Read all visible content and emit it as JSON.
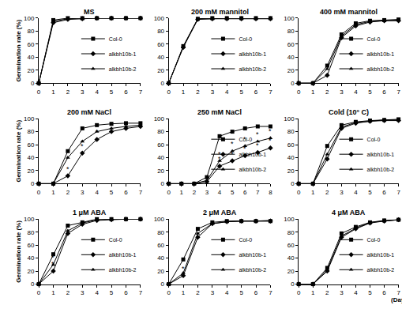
{
  "chart_data": [
    {
      "type": "line",
      "title": "MS",
      "x": [
        0,
        1,
        2,
        3,
        4,
        5,
        6,
        7
      ],
      "xlim": [
        0,
        7
      ],
      "xticks": [
        0,
        1,
        2,
        3,
        4,
        5,
        6,
        7
      ],
      "ylim": [
        0,
        100
      ],
      "yticks": [
        0,
        20,
        40,
        60,
        80,
        100
      ],
      "grid": false,
      "y_label": "Germination rate (%)",
      "legend": "lower right",
      "series": [
        {
          "name": "Col-0",
          "color": "#000000",
          "marker": "square",
          "values": [
            0,
            97,
            100,
            100,
            100,
            100,
            100,
            100
          ]
        },
        {
          "name": "alkbh10b-1",
          "color": "#000000",
          "marker": "diamond",
          "values": [
            0,
            93,
            98,
            99,
            100,
            100,
            100,
            100
          ]
        },
        {
          "name": "alkbh10b-2",
          "color": "#000000",
          "marker": "triangle-up",
          "values": [
            0,
            95,
            99,
            100,
            100,
            100,
            100,
            100
          ]
        }
      ]
    },
    {
      "type": "line",
      "title": "200 mM mannitol",
      "x": [
        0,
        1,
        2,
        3,
        4,
        5,
        6,
        7
      ],
      "xlim": [
        0,
        7
      ],
      "xticks": [
        0,
        1,
        2,
        3,
        4,
        5,
        6,
        7
      ],
      "ylim": [
        0,
        100
      ],
      "yticks": [
        0,
        20,
        40,
        60,
        80,
        100
      ],
      "grid": false,
      "legend": "lower right",
      "series": [
        {
          "name": "Col-0",
          "color": "#000000",
          "marker": "square",
          "values": [
            0,
            57,
            99,
            100,
            100,
            100,
            100,
            100
          ]
        },
        {
          "name": "alkbh10b-1",
          "color": "#000000",
          "marker": "diamond",
          "values": [
            0,
            55,
            98,
            99,
            99,
            99,
            99,
            99
          ]
        },
        {
          "name": "alkbh10b-2",
          "color": "#000000",
          "marker": "triangle-up",
          "values": [
            0,
            56,
            99,
            99,
            100,
            100,
            100,
            100
          ]
        }
      ]
    },
    {
      "type": "line",
      "title": "400 mM mannitol",
      "x": [
        0,
        1,
        2,
        3,
        4,
        5,
        6,
        7
      ],
      "xlim": [
        0,
        7
      ],
      "xticks": [
        0,
        1,
        2,
        3,
        4,
        5,
        6,
        7
      ],
      "ylim": [
        0,
        100
      ],
      "yticks": [
        0,
        20,
        40,
        60,
        80,
        100
      ],
      "grid": false,
      "legend": "lower right",
      "series": [
        {
          "name": "Col-0",
          "color": "#000000",
          "marker": "square",
          "values": [
            0,
            0,
            27,
            75,
            92,
            96,
            97,
            98
          ]
        },
        {
          "name": "alkbh10b-1",
          "color": "#000000",
          "marker": "diamond",
          "values": [
            0,
            0,
            12,
            70,
            88,
            94,
            96,
            96
          ]
        },
        {
          "name": "alkbh10b-2",
          "color": "#000000",
          "marker": "triangle-up",
          "values": [
            0,
            0,
            22,
            72,
            90,
            95,
            96,
            97
          ]
        }
      ]
    },
    {
      "type": "line",
      "title": "200 mM NaCl",
      "x": [
        0,
        1,
        2,
        3,
        4,
        5,
        6,
        7
      ],
      "xlim": [
        0,
        7
      ],
      "xticks": [
        0,
        1,
        2,
        3,
        4,
        5,
        6,
        7
      ],
      "ylim": [
        0,
        100
      ],
      "yticks": [
        0,
        20,
        40,
        60,
        80,
        100
      ],
      "grid": false,
      "y_label": "Germination rate (%)",
      "series": [
        {
          "name": "Col-0",
          "color": "#000000",
          "marker": "square",
          "values": [
            0,
            0,
            50,
            85,
            90,
            92,
            93,
            93
          ]
        },
        {
          "name": "alkbh10b-1",
          "color": "#000000",
          "marker": "diamond",
          "values": [
            0,
            0,
            12,
            47,
            68,
            80,
            85,
            88
          ]
        },
        {
          "name": "alkbh10b-2",
          "color": "#000000",
          "marker": "triangle-up",
          "values": [
            0,
            0,
            40,
            65,
            80,
            85,
            88,
            90
          ]
        }
      ],
      "annotations": [
        {
          "x": 2,
          "y": 12,
          "text": "*"
        },
        {
          "x": 3,
          "y": 47,
          "text": "*"
        },
        {
          "x": 4,
          "y": 68,
          "text": "*"
        }
      ]
    },
    {
      "type": "line",
      "title": "250 mM NaCl",
      "x": [
        0,
        1,
        2,
        3,
        4,
        5,
        6,
        7,
        8
      ],
      "xlim": [
        0,
        8
      ],
      "xticks": [
        0,
        1,
        2,
        3,
        4,
        5,
        6,
        7,
        8
      ],
      "ylim": [
        0,
        100
      ],
      "yticks": [
        0,
        20,
        40,
        60,
        80,
        100
      ],
      "grid": false,
      "legend": "lower right",
      "series": [
        {
          "name": "Col-0",
          "color": "#000000",
          "marker": "square",
          "values": [
            0,
            0,
            0,
            10,
            73,
            80,
            85,
            88,
            88
          ]
        },
        {
          "name": "alkbh10b-1",
          "color": "#000000",
          "marker": "diamond",
          "values": [
            0,
            0,
            0,
            3,
            27,
            35,
            43,
            48,
            55
          ]
        },
        {
          "name": "alkbh10b-2",
          "color": "#000000",
          "marker": "triangle-up",
          "values": [
            0,
            0,
            0,
            5,
            35,
            50,
            58,
            65,
            70
          ]
        }
      ],
      "annotations": [
        {
          "x": 4,
          "y": 35,
          "text": "*"
        },
        {
          "x": 5,
          "y": 50,
          "text": "*"
        },
        {
          "x": 6,
          "y": 58,
          "text": "*"
        },
        {
          "x": 7,
          "y": 65,
          "text": "*"
        },
        {
          "x": 8,
          "y": 70,
          "text": "*"
        },
        {
          "x": 4,
          "y": 27,
          "text": "*"
        },
        {
          "x": 5,
          "y": 35,
          "text": "*"
        },
        {
          "x": 6,
          "y": 43,
          "text": "*"
        },
        {
          "x": 7,
          "y": 48,
          "text": "*"
        },
        {
          "x": 8,
          "y": 55,
          "text": "*"
        }
      ]
    },
    {
      "type": "line",
      "title": "Cold (10° C)",
      "x": [
        0,
        1,
        2,
        3,
        4,
        5,
        6,
        7
      ],
      "xlim": [
        0,
        7
      ],
      "xticks": [
        0,
        1,
        2,
        3,
        4,
        5,
        6,
        7
      ],
      "ylim": [
        0,
        100
      ],
      "yticks": [
        0,
        20,
        40,
        60,
        80,
        100
      ],
      "grid": false,
      "legend": "lower right",
      "series": [
        {
          "name": "Col-0",
          "color": "#000000",
          "marker": "square",
          "values": [
            0,
            0,
            58,
            90,
            95,
            97,
            98,
            99
          ]
        },
        {
          "name": "alkbh10b-1",
          "color": "#000000",
          "marker": "diamond",
          "values": [
            0,
            0,
            38,
            85,
            93,
            96,
            97,
            97
          ]
        },
        {
          "name": "alkbh10b-2",
          "color": "#000000",
          "marker": "triangle-up",
          "values": [
            0,
            0,
            45,
            87,
            94,
            96,
            98,
            98
          ]
        }
      ]
    },
    {
      "type": "line",
      "title": "1 μM ABA",
      "x": [
        0,
        1,
        2,
        3,
        4,
        5,
        6,
        7
      ],
      "xlim": [
        0,
        7
      ],
      "xticks": [
        0,
        1,
        2,
        3,
        4,
        5,
        6,
        7
      ],
      "ylim": [
        0,
        100
      ],
      "yticks": [
        0,
        20,
        40,
        60,
        80,
        100
      ],
      "grid": false,
      "y_label": "Germination rate (%)",
      "legend": "lower right",
      "series": [
        {
          "name": "Col-0",
          "color": "#000000",
          "marker": "square",
          "values": [
            0,
            46,
            90,
            95,
            100,
            100,
            100,
            100
          ]
        },
        {
          "name": "alkbh10b-1",
          "color": "#000000",
          "marker": "diamond",
          "values": [
            0,
            20,
            78,
            92,
            98,
            99,
            100,
            100
          ]
        },
        {
          "name": "alkbh10b-2",
          "color": "#000000",
          "marker": "triangle-up",
          "values": [
            0,
            30,
            82,
            94,
            99,
            100,
            100,
            100
          ]
        }
      ],
      "annotations": [
        {
          "x": 1,
          "y": 30,
          "text": "*"
        },
        {
          "x": 1,
          "y": 20,
          "text": "*"
        }
      ]
    },
    {
      "type": "line",
      "title": "2 μM ABA",
      "x": [
        0,
        1,
        2,
        3,
        4,
        5,
        6,
        7
      ],
      "xlim": [
        0,
        7
      ],
      "xticks": [
        0,
        1,
        2,
        3,
        4,
        5,
        6,
        7
      ],
      "ylim": [
        0,
        100
      ],
      "yticks": [
        0,
        20,
        40,
        60,
        80,
        100
      ],
      "grid": false,
      "legend": "lower right",
      "series": [
        {
          "name": "Col-0",
          "color": "#000000",
          "marker": "square",
          "values": [
            0,
            38,
            85,
            95,
            97,
            97,
            97,
            97
          ]
        },
        {
          "name": "alkbh10b-1",
          "color": "#000000",
          "marker": "diamond",
          "values": [
            0,
            13,
            72,
            93,
            96,
            97,
            97,
            97
          ]
        },
        {
          "name": "alkbh10b-2",
          "color": "#000000",
          "marker": "triangle-up",
          "values": [
            0,
            17,
            78,
            93,
            96,
            97,
            97,
            98
          ]
        }
      ],
      "annotations": [
        {
          "x": 1,
          "y": 13,
          "text": "*"
        }
      ]
    },
    {
      "type": "line",
      "title": "4 μM ABA",
      "x": [
        0,
        1,
        2,
        3,
        4,
        5,
        6,
        7
      ],
      "xlim": [
        0,
        7
      ],
      "xticks": [
        0,
        1,
        2,
        3,
        4,
        5,
        6,
        7
      ],
      "ylim": [
        0,
        100
      ],
      "yticks": [
        0,
        20,
        40,
        60,
        80,
        100
      ],
      "grid": false,
      "legend": "lower right",
      "x_label": "(Day)",
      "series": [
        {
          "name": "Col-0",
          "color": "#000000",
          "marker": "square",
          "values": [
            0,
            0,
            25,
            78,
            88,
            95,
            98,
            99
          ]
        },
        {
          "name": "alkbh10b-1",
          "color": "#000000",
          "marker": "diamond",
          "values": [
            0,
            0,
            20,
            72,
            85,
            94,
            97,
            99
          ]
        },
        {
          "name": "alkbh10b-2",
          "color": "#000000",
          "marker": "triangle-up",
          "values": [
            0,
            0,
            22,
            74,
            86,
            95,
            97,
            99
          ]
        }
      ]
    }
  ]
}
